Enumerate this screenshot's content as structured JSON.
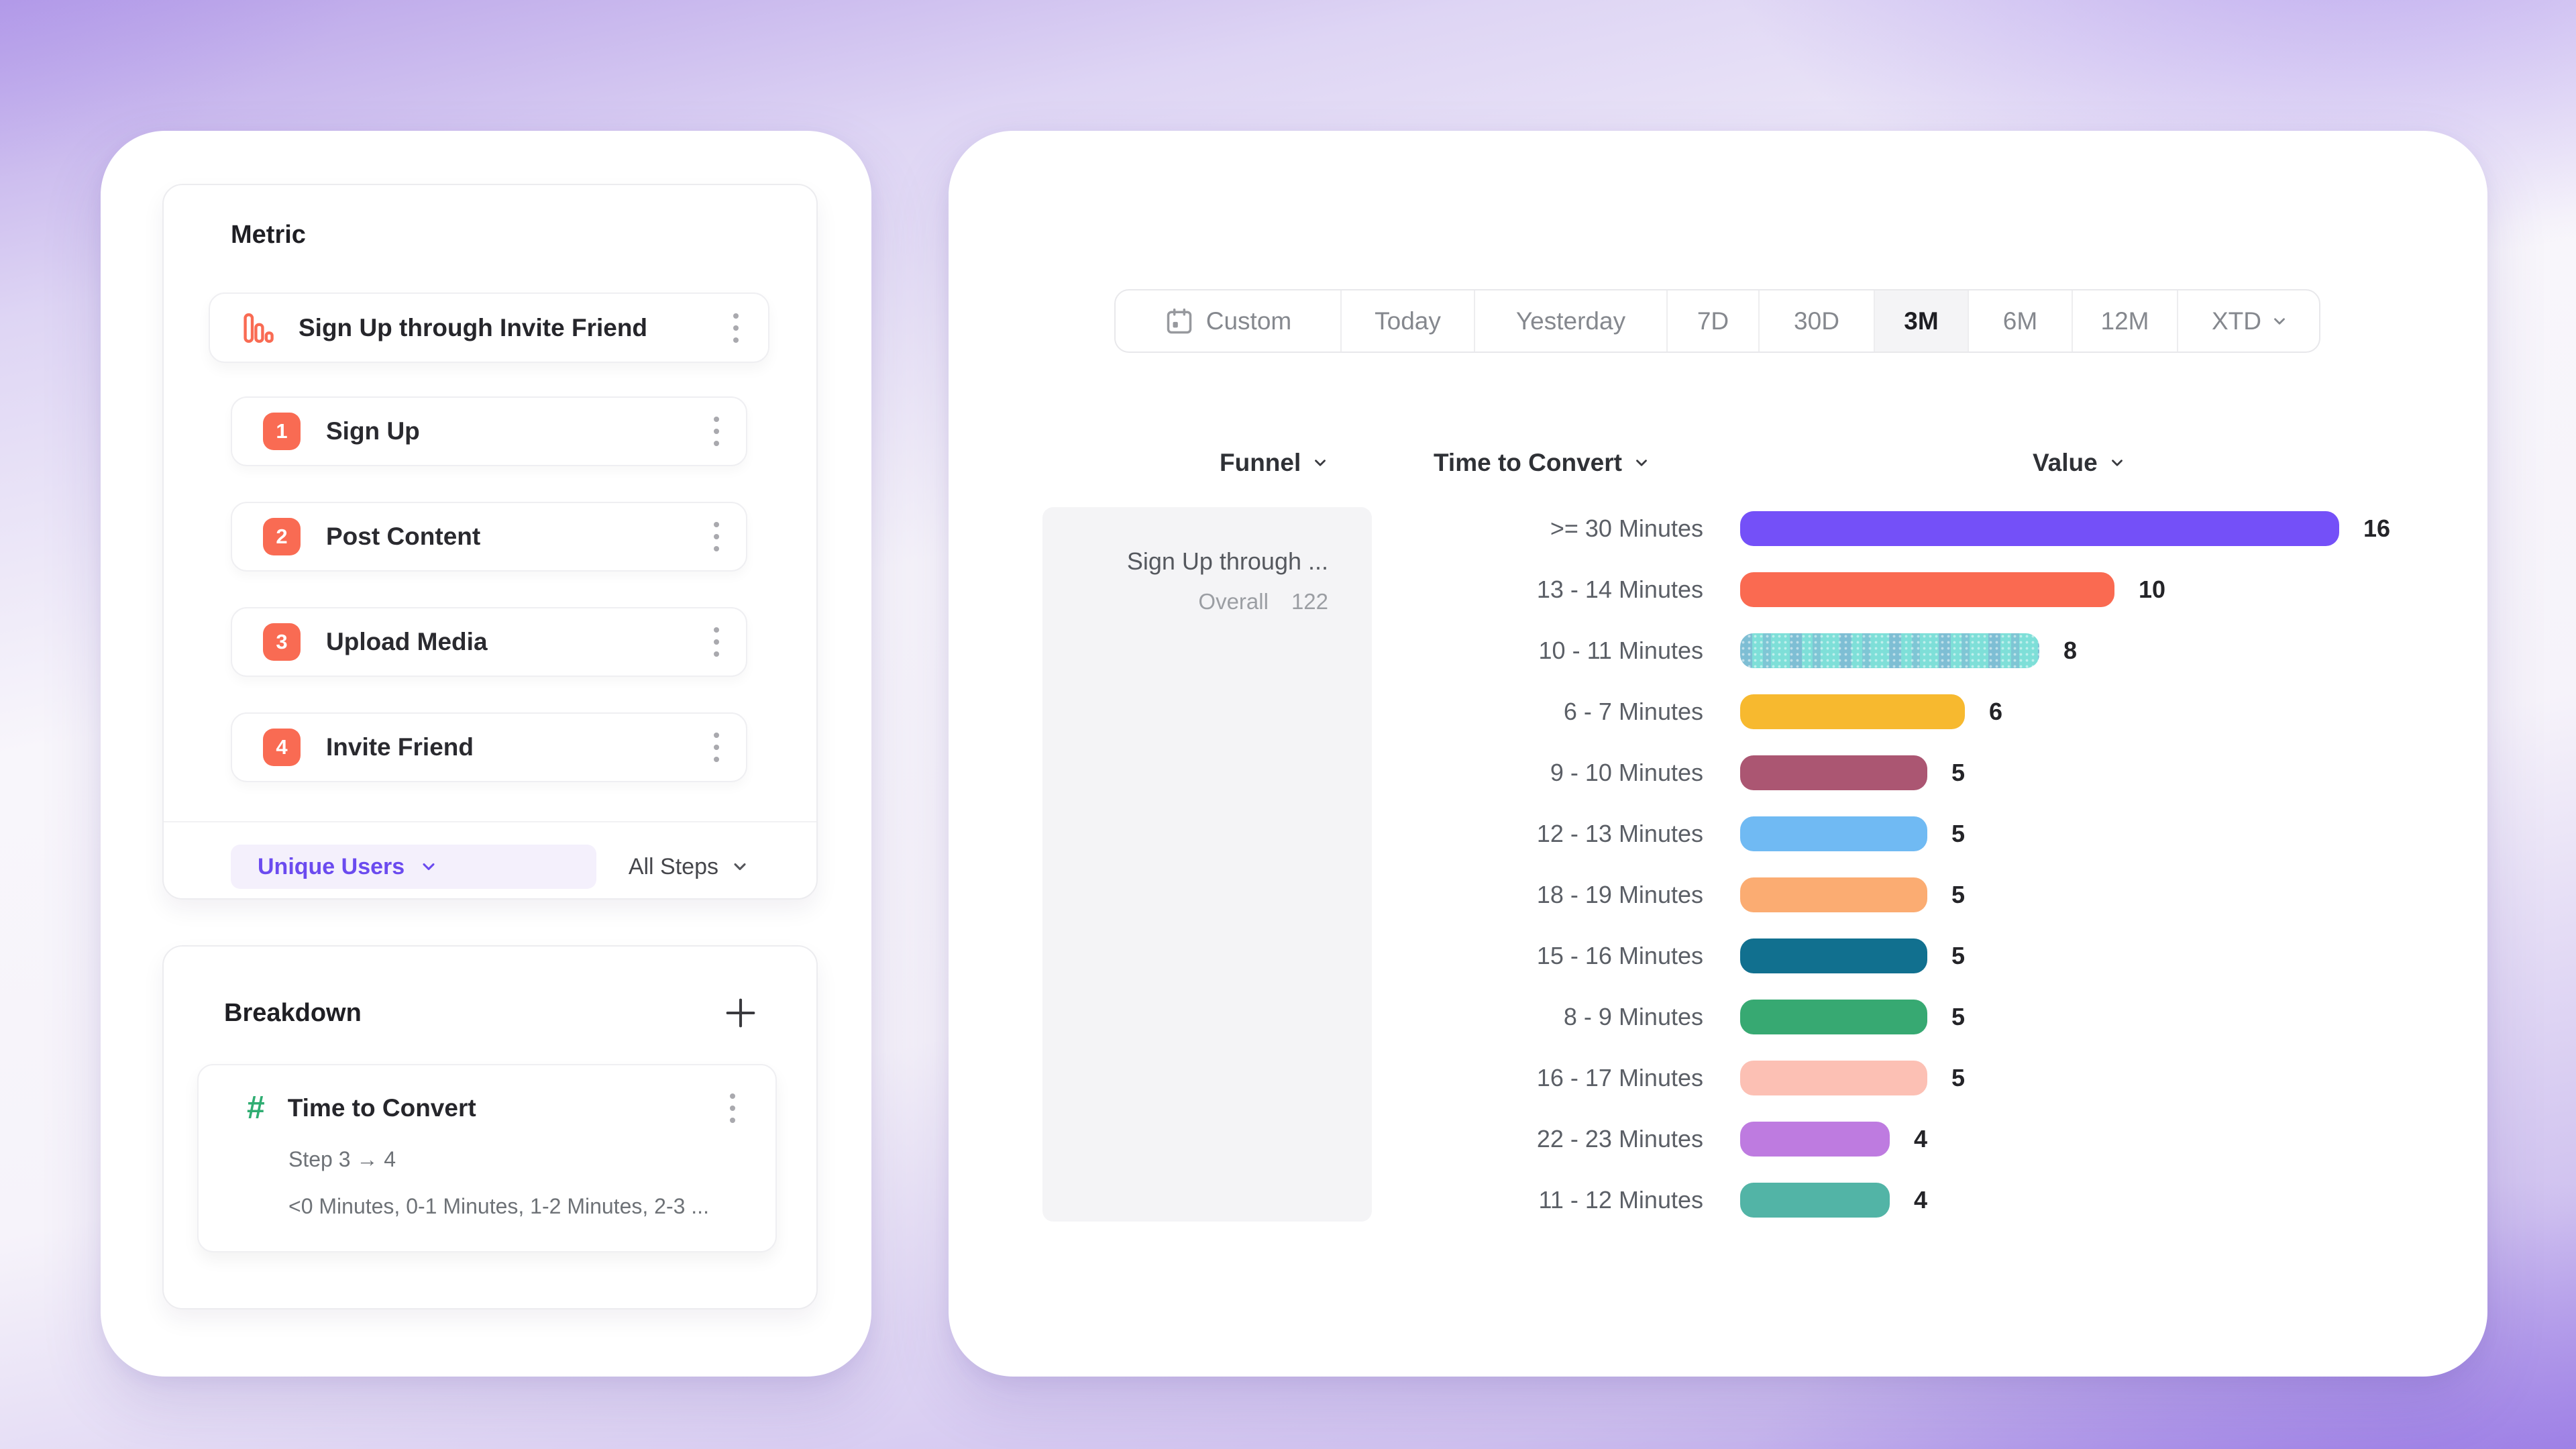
{
  "metric_panel": {
    "header": "Metric",
    "funnel": {
      "icon": "bar-chart-icon",
      "title": "Sign Up through Invite Friend",
      "steps": [
        {
          "number": "1",
          "label": "Sign Up"
        },
        {
          "number": "2",
          "label": "Post Content"
        },
        {
          "number": "3",
          "label": "Upload Media"
        },
        {
          "number": "4",
          "label": "Invite Friend"
        }
      ]
    },
    "footer": {
      "counting_method": "Unique Users",
      "steps_scope": "All Steps"
    }
  },
  "breakdown_panel": {
    "header": "Breakdown",
    "add_icon": "plus-icon",
    "property": {
      "icon": "hash-icon",
      "title": "Time to Convert",
      "step_range": "Step 3 → 4",
      "values_preview": "<0 Minutes, 0-1 Minutes, 1-2 Minutes, 2-3 ..."
    }
  },
  "date_range_bar": {
    "tabs": [
      {
        "label": "Custom",
        "icon": "calendar-icon"
      },
      {
        "label": "Today"
      },
      {
        "label": "Yesterday"
      },
      {
        "label": "7D"
      },
      {
        "label": "30D"
      },
      {
        "label": "3M",
        "selected": true
      },
      {
        "label": "6M"
      },
      {
        "label": "12M"
      },
      {
        "label": "XTD",
        "has_chevron": true
      }
    ]
  },
  "report": {
    "columns": {
      "funnel": "Funnel",
      "time_to_convert": "Time to Convert",
      "value": "Value"
    },
    "funnel_summary": {
      "title": "Sign Up through ...",
      "overall_label": "Overall",
      "overall_value": "122"
    }
  },
  "chart_data": {
    "type": "bar",
    "orientation": "horizontal",
    "title": "Time to Convert breakdown (Step 3 → 4)",
    "xlabel": "Value",
    "ylabel": "Time to Convert bucket",
    "xlim": [
      0,
      16
    ],
    "grid": false,
    "legend": "none",
    "value_labels_shown": true,
    "categories": [
      ">= 30 Minutes",
      "13 - 14 Minutes",
      "10 - 11 Minutes",
      "6 - 7 Minutes",
      "9 - 10 Minutes",
      "12 - 13 Minutes",
      "18 - 19 Minutes",
      "15 - 16 Minutes",
      "8 - 9 Minutes",
      "16 - 17 Minutes",
      "22 - 23 Minutes",
      "11 - 12 Minutes"
    ],
    "values": [
      16,
      10,
      8,
      6,
      5,
      5,
      5,
      5,
      5,
      5,
      4,
      4
    ],
    "colors": [
      "#7450F8",
      "#FA6A51",
      "#7EDFD8",
      "#F7B92F",
      "#AB5672",
      "#70BAF3",
      "#FBAC72",
      "#11708F",
      "#37A972",
      "#FCC0B4",
      "#BE7BE0",
      "#52B4A6"
    ],
    "patterns": [
      "solid",
      "solid",
      "hatched",
      "solid",
      "solid",
      "solid",
      "solid",
      "solid",
      "solid",
      "solid",
      "solid",
      "solid"
    ]
  }
}
